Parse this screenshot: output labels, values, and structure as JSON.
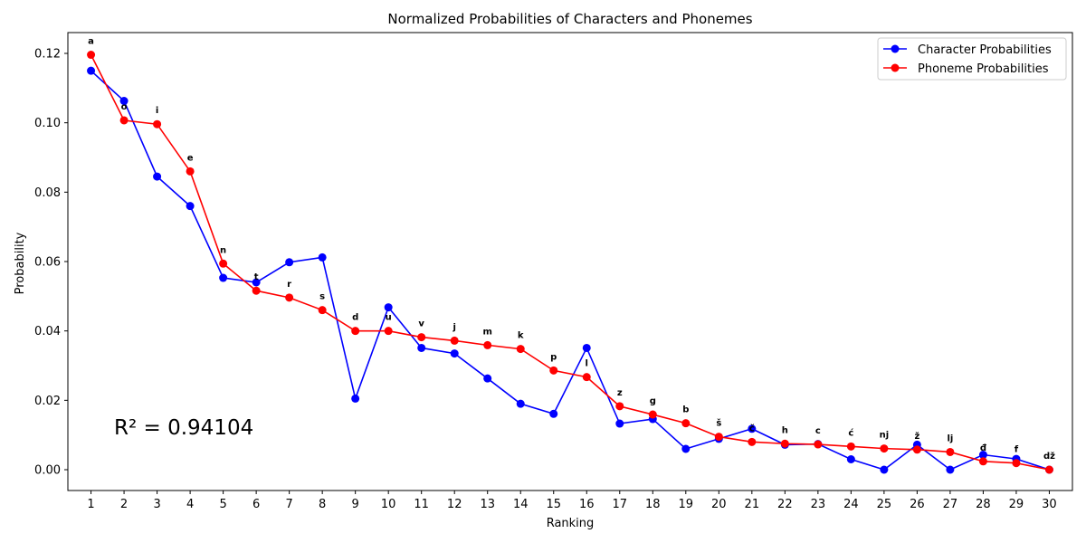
{
  "chart_data": {
    "type": "line",
    "title": "Normalized Probabilities of Characters and Phonemes",
    "xlabel": "Ranking",
    "ylabel": "Probability",
    "x": [
      1,
      2,
      3,
      4,
      5,
      6,
      7,
      8,
      9,
      10,
      11,
      12,
      13,
      14,
      15,
      16,
      17,
      18,
      19,
      20,
      21,
      22,
      23,
      24,
      25,
      26,
      27,
      28,
      29,
      30
    ],
    "xlim": [
      0.3,
      30.7
    ],
    "ylim": [
      -0.006,
      0.126
    ],
    "yticks": [
      0.0,
      0.02,
      0.04,
      0.06,
      0.08,
      0.1,
      0.12
    ],
    "ytick_labels": [
      "0.00",
      "0.02",
      "0.04",
      "0.06",
      "0.08",
      "0.10",
      "0.12"
    ],
    "grid": false,
    "legend_position": "upper right",
    "series": [
      {
        "name": "Character Probabilities",
        "color": "#0000ff",
        "values": [
          0.115,
          0.1063,
          0.0845,
          0.076,
          0.0553,
          0.054,
          0.0598,
          0.0612,
          0.0205,
          0.0468,
          0.0351,
          0.0335,
          0.0263,
          0.019,
          0.0161,
          0.0351,
          0.0133,
          0.0146,
          0.006,
          0.0089,
          0.0118,
          0.0072,
          0.0074,
          0.003,
          0.0,
          0.0072,
          0.0,
          0.0043,
          0.0031,
          0.0
        ]
      },
      {
        "name": "Phoneme Probabilities",
        "color": "#ff0000",
        "values": [
          0.1196,
          0.1007,
          0.0996,
          0.086,
          0.0594,
          0.0516,
          0.0496,
          0.046,
          0.04,
          0.04,
          0.0382,
          0.0372,
          0.0359,
          0.0348,
          0.0286,
          0.0267,
          0.0183,
          0.0159,
          0.0134,
          0.0095,
          0.008,
          0.0075,
          0.0073,
          0.0067,
          0.0061,
          0.0058,
          0.0051,
          0.0024,
          0.0019,
          0.0
        ]
      }
    ],
    "annotations": [
      "a",
      "o",
      "i",
      "e",
      "n",
      "t",
      "r",
      "s",
      "d",
      "u",
      "v",
      "j",
      "m",
      "k",
      "p",
      "l",
      "z",
      "g",
      "b",
      "š",
      "č",
      "h",
      "c",
      "ć",
      "nj",
      "ž",
      "lj",
      "đ",
      "f",
      "dž"
    ],
    "r_squared_text": "R² = 0.94104"
  }
}
